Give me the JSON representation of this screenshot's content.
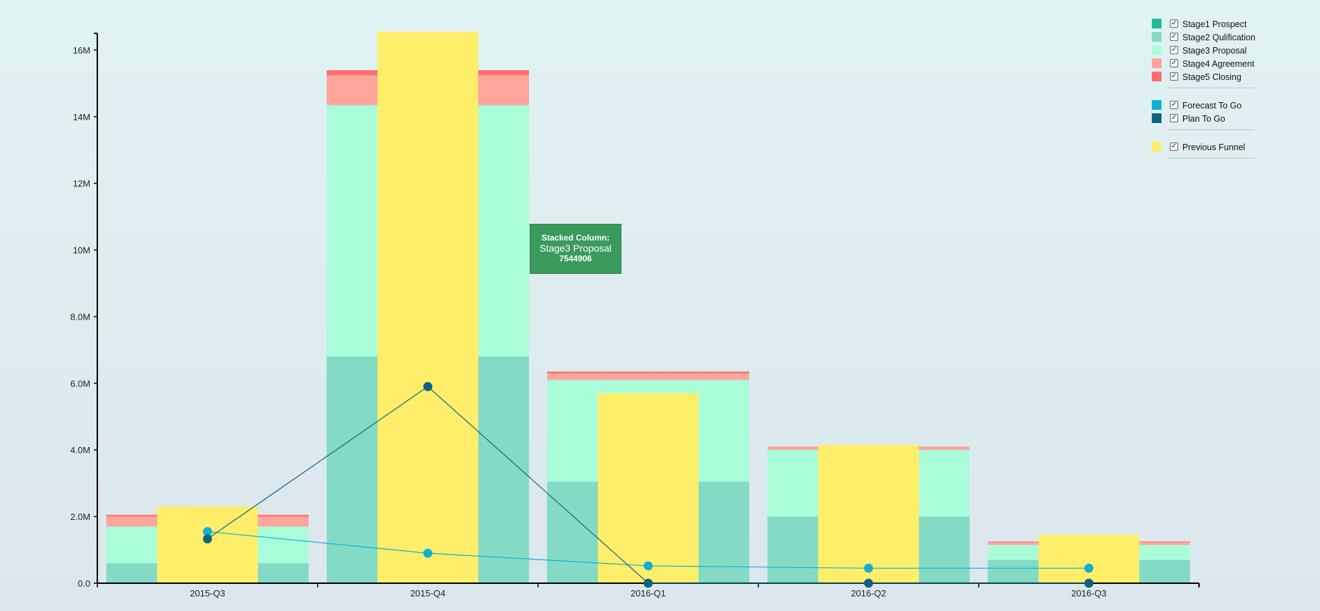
{
  "chart_data": {
    "type": "bar",
    "categories": [
      "2015-Q3",
      "2015-Q4",
      "2016-Q1",
      "2016-Q2",
      "2016-Q3"
    ],
    "y_ticks": [
      "0.0",
      "2.0M",
      "4.0M",
      "6.0M",
      "8.0M",
      "10M",
      "12M",
      "14M",
      "16M"
    ],
    "ylim": [
      0,
      16500000
    ],
    "grid": false,
    "stacked_series": [
      {
        "name": "Stage1 Prospect",
        "color": "#1abc9c",
        "values": [
          0,
          0,
          0,
          0,
          0
        ]
      },
      {
        "name": "Stage2 Qulification",
        "color": "#83dbc6",
        "values": [
          600000,
          6800000,
          3050000,
          2000000,
          700000
        ]
      },
      {
        "name": "Stage3 Proposal",
        "color": "#a9fdd8",
        "values": [
          1100000,
          7544906,
          3050000,
          2000000,
          450000
        ]
      },
      {
        "name": "Stage4 Agreement",
        "color": "#ffa59b",
        "values": [
          300000,
          900000,
          200000,
          100000,
          80000
        ]
      },
      {
        "name": "Stage5 Closing",
        "color": "#ff6d6d",
        "values": [
          50000,
          150000,
          50000,
          0,
          20000
        ]
      }
    ],
    "previous_funnel": {
      "name": "Previous Funnel",
      "color": "#ffee6a",
      "values": [
        2300000,
        16550000,
        5700000,
        4150000,
        1450000
      ]
    },
    "lines": [
      {
        "name": "Forecast To Go",
        "color": "#10b0d2",
        "values": [
          1550000,
          900000,
          520000,
          450000,
          450000
        ]
      },
      {
        "name": "Plan To Go",
        "color": "#0d6384",
        "values": [
          1330000,
          5900000,
          0,
          0,
          0
        ]
      }
    ],
    "tooltip": {
      "title": "Stacked Column:",
      "series": "Stage3 Proposal",
      "value": "7544906"
    }
  },
  "legend": {
    "groups": [
      [
        {
          "label": "Stage1 Prospect",
          "color": "#1abc9c"
        },
        {
          "label": "Stage2 Qulification",
          "color": "#83dbc6"
        },
        {
          "label": "Stage3 Proposal",
          "color": "#a9fdd8"
        },
        {
          "label": "Stage4 Agreement",
          "color": "#ffa59b"
        },
        {
          "label": "Stage5 Closing",
          "color": "#ff6d6d"
        }
      ],
      [
        {
          "label": "Forecast To Go",
          "color": "#10b0d2"
        },
        {
          "label": "Plan To Go",
          "color": "#0d6384"
        }
      ],
      [
        {
          "label": "Previous Funnel",
          "color": "#ffee6a"
        }
      ]
    ],
    "check_mark": "✓"
  }
}
